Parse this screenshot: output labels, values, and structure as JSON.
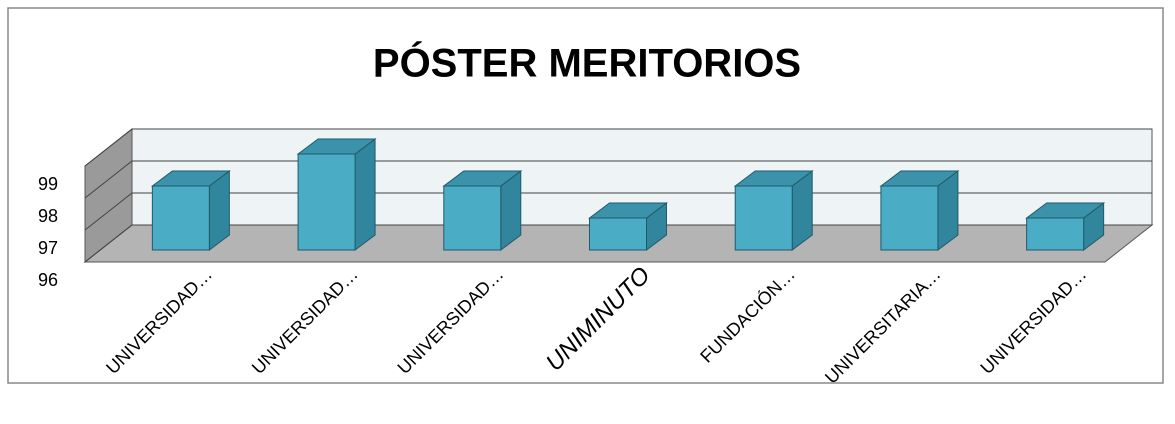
{
  "chart_data": {
    "type": "bar3d",
    "title": "PÓSTER MERITORIOS",
    "categories": [
      "UNIVERSIDAD…",
      "UNIVERSIDAD…",
      "UNIVERSIDAD…",
      "UNIMINUTO",
      "FUNDACIÓN…",
      "UNIVERSITARIA…",
      "UNIVERSIDAD…"
    ],
    "values": [
      98,
      99,
      98,
      97,
      98,
      98,
      97
    ],
    "color": "#4bacc6",
    "ylim": [
      96,
      99
    ],
    "yticks": [
      96,
      97,
      98,
      99
    ],
    "grid": true
  }
}
